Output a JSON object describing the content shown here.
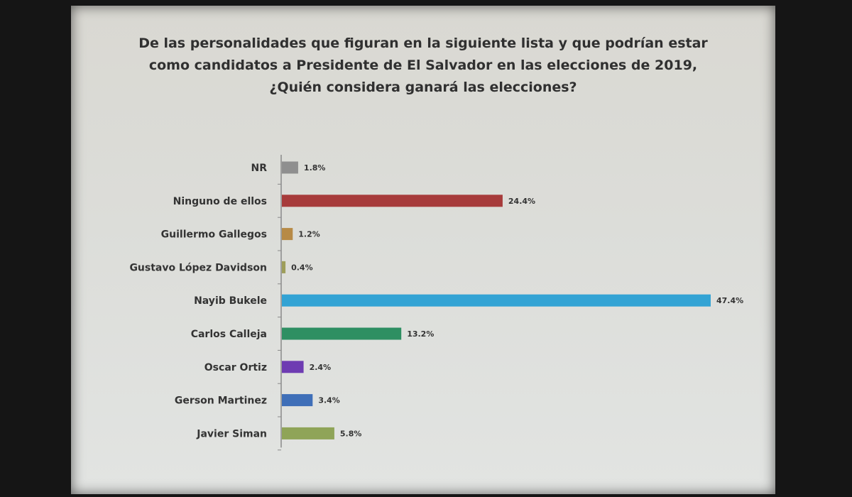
{
  "title_lines": [
    "De las personalidades que figuran en la siguiente lista y que podrían estar",
    "como candidatos a Presidente de El Salvador en las elecciones de 2019,",
    "¿Quién considera ganará las elecciones?"
  ],
  "chart_data": {
    "type": "bar",
    "orientation": "horizontal",
    "title": "De las personalidades que figuran en la siguiente lista y que podrían estar como candidatos a Presidente de El Salvador en las elecciones de 2019, ¿Quién considera ganará las elecciones?",
    "categories": [
      "NR",
      "Ninguno de ellos",
      "Guillermo Gallegos",
      "Gustavo López Davidson",
      "Nayib Bukele",
      "Carlos Calleja",
      "Oscar Ortiz",
      "Gerson Martinez",
      "Javier Siman"
    ],
    "values": [
      1.8,
      24.4,
      1.2,
      0.4,
      47.4,
      13.2,
      2.4,
      3.4,
      5.8
    ],
    "data_labels": [
      "1.8%",
      "24.4%",
      "1.2%",
      "0.4%",
      "47.4%",
      "13.2%",
      "2.4%",
      "3.4%",
      "5.8%"
    ],
    "colors": [
      "#8f8f8f",
      "#a73b3b",
      "#b78a46",
      "#9e9e5a",
      "#33a3d4",
      "#2e8f62",
      "#6e3cb2",
      "#3f6fb8",
      "#8fa458"
    ],
    "xlim": [
      0,
      47.4
    ],
    "grid": false,
    "legend": "none"
  }
}
